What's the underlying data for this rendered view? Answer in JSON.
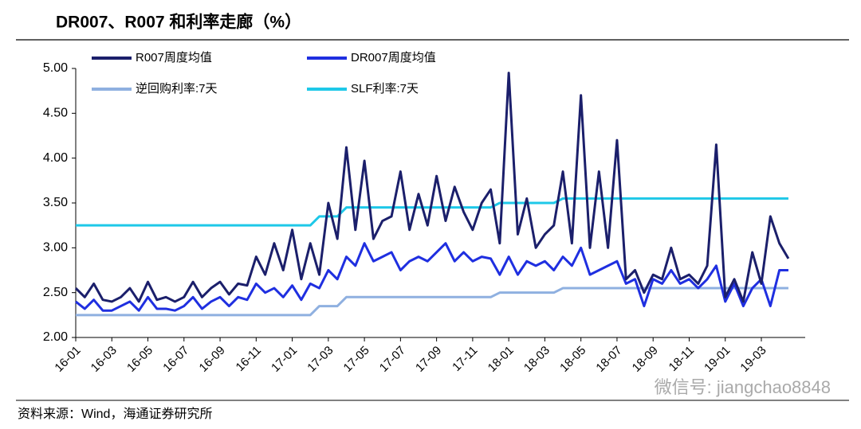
{
  "chart_data": {
    "type": "line",
    "title": "DR007、R007 和利率走廊（%）",
    "source": "资料来源：Wind，海通证券研究所",
    "watermark": "微信号: jiangchao8848",
    "categories": [
      "16-01",
      null,
      null,
      null,
      "16-03",
      null,
      null,
      null,
      "16-05",
      null,
      null,
      null,
      "16-07",
      null,
      null,
      null,
      "16-09",
      null,
      null,
      null,
      "16-11",
      null,
      null,
      null,
      "17-01",
      null,
      null,
      null,
      "17-03",
      null,
      null,
      null,
      "17-05",
      null,
      null,
      null,
      "17-07",
      null,
      null,
      null,
      "17-09",
      null,
      null,
      null,
      "17-11",
      null,
      null,
      null,
      "18-01",
      null,
      null,
      null,
      "18-03",
      null,
      null,
      null,
      "18-05",
      null,
      null,
      null,
      "18-07",
      null,
      null,
      null,
      "18-09",
      null,
      null,
      null,
      "18-11",
      null,
      null,
      null,
      "19-01",
      null,
      null,
      null,
      "19-03",
      null,
      null,
      null
    ],
    "series": [
      {
        "name": "R007周度均值",
        "color": "#1b1f6b",
        "values": [
          2.55,
          2.45,
          2.6,
          2.42,
          2.4,
          2.45,
          2.55,
          2.4,
          2.62,
          2.42,
          2.45,
          2.4,
          2.45,
          2.62,
          2.45,
          2.55,
          2.62,
          2.48,
          2.6,
          2.58,
          2.9,
          2.7,
          3.05,
          2.75,
          3.2,
          2.65,
          3.05,
          2.7,
          3.5,
          3.1,
          4.12,
          3.2,
          3.97,
          3.1,
          3.3,
          3.35,
          3.85,
          3.2,
          3.6,
          3.25,
          3.8,
          3.3,
          3.68,
          3.4,
          3.2,
          3.5,
          3.65,
          3.05,
          4.95,
          3.15,
          3.55,
          3.0,
          3.15,
          3.25,
          3.85,
          3.05,
          4.7,
          3.0,
          3.85,
          3.0,
          4.2,
          2.65,
          2.75,
          2.5,
          2.7,
          2.65,
          3.0,
          2.65,
          2.7,
          2.6,
          2.8,
          4.15,
          2.45,
          2.65,
          2.4,
          2.95,
          2.6,
          3.35,
          3.05,
          2.88
        ]
      },
      {
        "name": "DR007周度均值",
        "color": "#1f2fe0",
        "values": [
          2.4,
          2.32,
          2.42,
          2.3,
          2.3,
          2.35,
          2.4,
          2.3,
          2.45,
          2.32,
          2.32,
          2.3,
          2.35,
          2.45,
          2.32,
          2.4,
          2.45,
          2.35,
          2.45,
          2.42,
          2.6,
          2.5,
          2.55,
          2.45,
          2.58,
          2.42,
          2.6,
          2.55,
          2.75,
          2.65,
          2.9,
          2.8,
          3.05,
          2.85,
          2.9,
          2.95,
          2.75,
          2.85,
          2.9,
          2.85,
          2.95,
          3.05,
          2.85,
          2.95,
          2.85,
          2.9,
          2.88,
          2.7,
          2.9,
          2.7,
          2.85,
          2.8,
          2.85,
          2.75,
          2.9,
          2.8,
          3.0,
          2.7,
          2.75,
          2.8,
          2.85,
          2.6,
          2.65,
          2.35,
          2.65,
          2.6,
          2.75,
          2.6,
          2.65,
          2.55,
          2.65,
          2.8,
          2.4,
          2.6,
          2.35,
          2.55,
          2.65,
          2.35,
          2.75,
          2.75
        ]
      },
      {
        "name": "逆回购利率:7天",
        "color": "#8fb0e0",
        "values": [
          2.25,
          2.25,
          2.25,
          2.25,
          2.25,
          2.25,
          2.25,
          2.25,
          2.25,
          2.25,
          2.25,
          2.25,
          2.25,
          2.25,
          2.25,
          2.25,
          2.25,
          2.25,
          2.25,
          2.25,
          2.25,
          2.25,
          2.25,
          2.25,
          2.25,
          2.25,
          2.25,
          2.35,
          2.35,
          2.35,
          2.45,
          2.45,
          2.45,
          2.45,
          2.45,
          2.45,
          2.45,
          2.45,
          2.45,
          2.45,
          2.45,
          2.45,
          2.45,
          2.45,
          2.45,
          2.45,
          2.45,
          2.5,
          2.5,
          2.5,
          2.5,
          2.5,
          2.5,
          2.5,
          2.55,
          2.55,
          2.55,
          2.55,
          2.55,
          2.55,
          2.55,
          2.55,
          2.55,
          2.55,
          2.55,
          2.55,
          2.55,
          2.55,
          2.55,
          2.55,
          2.55,
          2.55,
          2.55,
          2.55,
          2.55,
          2.55,
          2.55,
          2.55,
          2.55,
          2.55
        ]
      },
      {
        "name": "SLF利率:7天",
        "color": "#1ec8e8",
        "values": [
          3.25,
          3.25,
          3.25,
          3.25,
          3.25,
          3.25,
          3.25,
          3.25,
          3.25,
          3.25,
          3.25,
          3.25,
          3.25,
          3.25,
          3.25,
          3.25,
          3.25,
          3.25,
          3.25,
          3.25,
          3.25,
          3.25,
          3.25,
          3.25,
          3.25,
          3.25,
          3.25,
          3.35,
          3.35,
          3.35,
          3.45,
          3.45,
          3.45,
          3.45,
          3.45,
          3.45,
          3.45,
          3.45,
          3.45,
          3.45,
          3.45,
          3.45,
          3.45,
          3.45,
          3.45,
          3.45,
          3.45,
          3.5,
          3.5,
          3.5,
          3.5,
          3.5,
          3.5,
          3.5,
          3.55,
          3.55,
          3.55,
          3.55,
          3.55,
          3.55,
          3.55,
          3.55,
          3.55,
          3.55,
          3.55,
          3.55,
          3.55,
          3.55,
          3.55,
          3.55,
          3.55,
          3.55,
          3.55,
          3.55,
          3.55,
          3.55,
          3.55,
          3.55,
          3.55,
          3.55
        ]
      }
    ],
    "ylim": [
      2,
      5
    ],
    "yticks": [
      {
        "value": 2,
        "label": "2.00"
      },
      {
        "value": 2.5,
        "label": "2.50"
      },
      {
        "value": 3,
        "label": "3.00"
      },
      {
        "value": 3.5,
        "label": "3.50"
      },
      {
        "value": 4,
        "label": "4.00"
      },
      {
        "value": 4.5,
        "label": "4.50"
      },
      {
        "value": 5,
        "label": "5.00"
      }
    ],
    "grid": false
  }
}
